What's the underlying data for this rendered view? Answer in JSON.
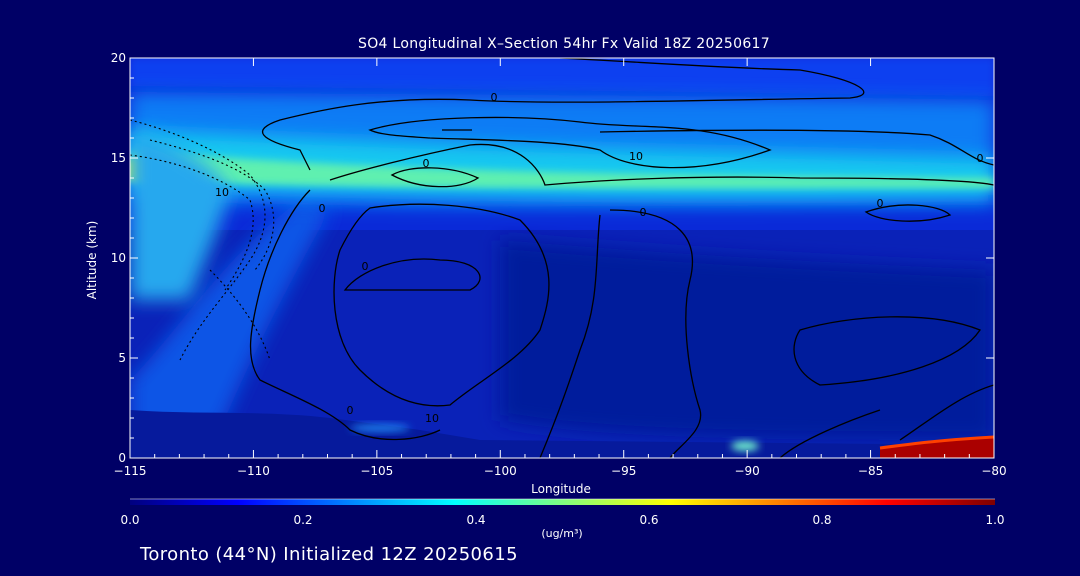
{
  "chart_data": {
    "type": "heatmap",
    "title": "SO4 Longitudinal X–Section 54hr  Fx Valid 18Z 20250617",
    "xlabel": "Longitude",
    "ylabel": "Altitude (km)",
    "xlim": [
      -115,
      -80
    ],
    "ylim": [
      0,
      20
    ],
    "x_ticks": [
      -115,
      -110,
      -105,
      -100,
      -95,
      -90,
      -85,
      -80
    ],
    "x_tick_labels": [
      "−115",
      "−110",
      "−105",
      "−100",
      "−95",
      "−90",
      "−85",
      "−80"
    ],
    "y_ticks": [
      0,
      5,
      10,
      15,
      20
    ],
    "y_tick_labels": [
      "0",
      "5",
      "10",
      "15",
      "20"
    ],
    "colorbar": {
      "range": [
        0.0,
        1.0
      ],
      "ticks": [
        0.0,
        0.2,
        0.4,
        0.6,
        0.8,
        1.0
      ],
      "tick_labels": [
        "0.0",
        "0.2",
        "0.4",
        "0.6",
        "0.8",
        "1.0"
      ],
      "unit": "(ug/m³)",
      "colors": [
        "#00007f",
        "#0000ff",
        "#0080ff",
        "#00ffff",
        "#80ff80",
        "#ffff00",
        "#ff8000",
        "#ff0000",
        "#7f0000"
      ]
    },
    "features": [
      {
        "name": "upper band",
        "lon": [
          -115,
          -80
        ],
        "alt": [
          13,
          17
        ],
        "value": 0.3
      },
      {
        "name": "upper band core",
        "lon": [
          -115,
          -80
        ],
        "alt": [
          13.5,
          15
        ],
        "value": 0.4
      },
      {
        "name": "western maximum",
        "lon": [
          -115,
          -113
        ],
        "alt": [
          14,
          15
        ],
        "value": 0.55
      },
      {
        "name": "western plume",
        "lon": [
          -115,
          -107
        ],
        "alt": [
          1,
          13
        ],
        "value": 0.25
      },
      {
        "name": "surface maximum",
        "lon": [
          -84.5,
          -80
        ],
        "alt": [
          0,
          1
        ],
        "value": 1.0
      },
      {
        "name": "surface spot",
        "lon": [
          -90,
          -89
        ],
        "alt": [
          0.3,
          1
        ],
        "value": 0.5
      }
    ],
    "contour_labels": [
      "0",
      "0",
      "0",
      "0",
      "0",
      "0",
      "0",
      "0",
      "10",
      "10",
      "10"
    ],
    "background": "#000066"
  },
  "footer": "Toronto (44°N) Initialized 12Z 20250615"
}
